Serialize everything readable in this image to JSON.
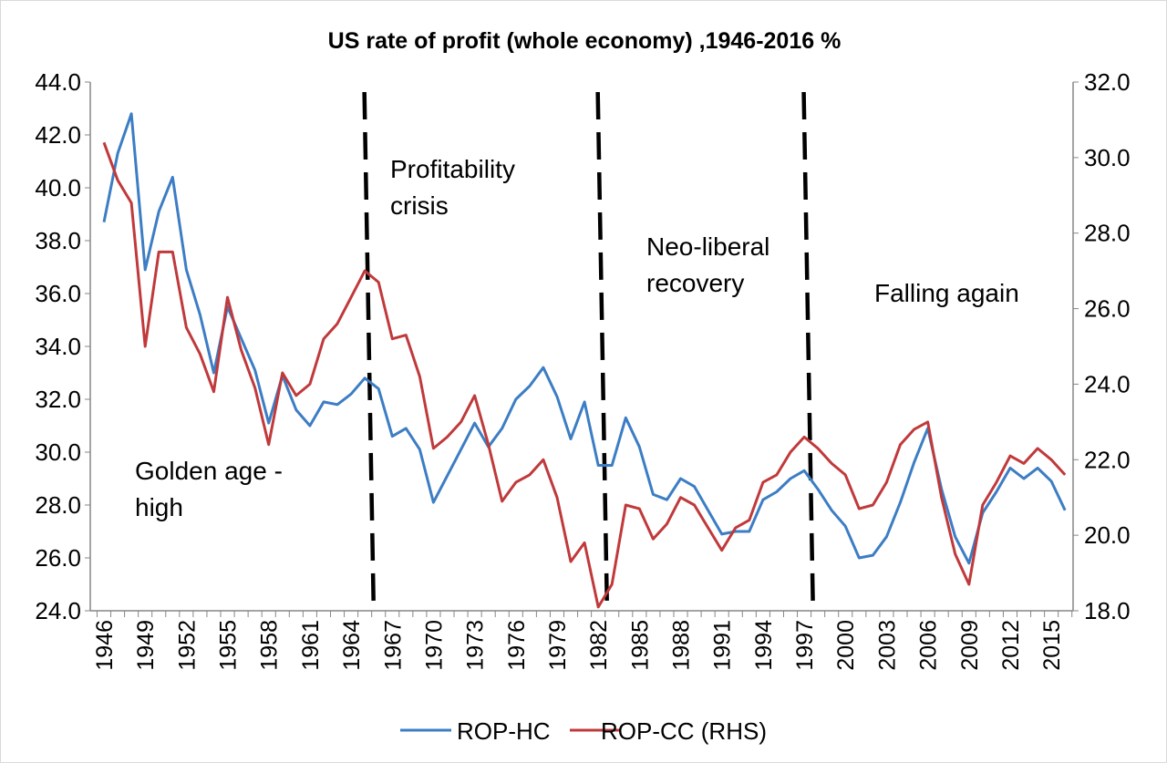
{
  "chart_data": {
    "type": "line",
    "title": "US rate of profit (whole economy) ,1946-2016 %",
    "x": [
      1946,
      1947,
      1948,
      1949,
      1950,
      1951,
      1952,
      1953,
      1954,
      1955,
      1956,
      1957,
      1958,
      1959,
      1960,
      1961,
      1962,
      1963,
      1964,
      1965,
      1966,
      1967,
      1968,
      1969,
      1970,
      1971,
      1972,
      1973,
      1974,
      1975,
      1976,
      1977,
      1978,
      1979,
      1980,
      1981,
      1982,
      1983,
      1984,
      1985,
      1986,
      1987,
      1988,
      1989,
      1990,
      1991,
      1992,
      1993,
      1994,
      1995,
      1996,
      1997,
      1998,
      1999,
      2000,
      2001,
      2002,
      2003,
      2004,
      2005,
      2006,
      2007,
      2008,
      2009,
      2010,
      2011,
      2012,
      2013,
      2014,
      2015,
      2016
    ],
    "x_tick_labels": [
      "1946",
      "1949",
      "1952",
      "1955",
      "1958",
      "1961",
      "1964",
      "1967",
      "1970",
      "1973",
      "1976",
      "1979",
      "1982",
      "1985",
      "1988",
      "1991",
      "1994",
      "1997",
      "2000",
      "2003",
      "2006",
      "2009",
      "2012",
      "2015"
    ],
    "series": [
      {
        "name": "ROP-HC",
        "axis": "left",
        "color": "#3c7dc4",
        "values": [
          38.7,
          41.3,
          42.8,
          36.9,
          39.1,
          40.4,
          36.9,
          35.2,
          33.0,
          35.5,
          34.3,
          33.1,
          31.1,
          32.9,
          31.6,
          31.0,
          31.9,
          31.8,
          32.2,
          32.8,
          32.4,
          30.6,
          30.9,
          30.1,
          28.1,
          29.1,
          30.1,
          31.1,
          30.2,
          30.9,
          32.0,
          32.5,
          33.2,
          32.1,
          30.5,
          31.9,
          29.5,
          29.5,
          31.3,
          30.2,
          28.4,
          28.2,
          29.0,
          28.7,
          27.8,
          26.9,
          27.0,
          27.0,
          28.2,
          28.5,
          29.0,
          29.3,
          28.6,
          27.8,
          27.2,
          26.0,
          26.1,
          26.8,
          28.1,
          29.6,
          30.9,
          28.6,
          26.8,
          25.8,
          27.7,
          28.5,
          29.4,
          29.0,
          29.4,
          28.9,
          27.8
        ]
      },
      {
        "name": "ROP-CC (RHS)",
        "axis": "right",
        "color": "#c0393b",
        "values": [
          30.4,
          29.4,
          28.8,
          25.0,
          27.5,
          27.5,
          25.5,
          24.8,
          23.8,
          26.3,
          24.9,
          23.9,
          22.4,
          24.3,
          23.7,
          24.0,
          25.2,
          25.6,
          26.3,
          27.0,
          26.7,
          25.2,
          25.3,
          24.2,
          22.3,
          22.6,
          23.0,
          23.7,
          22.4,
          20.9,
          21.4,
          21.6,
          22.0,
          21.0,
          19.3,
          19.8,
          18.1,
          18.7,
          20.8,
          20.7,
          19.9,
          20.3,
          21.0,
          20.8,
          20.2,
          19.6,
          20.2,
          20.4,
          21.4,
          21.6,
          22.2,
          22.6,
          22.3,
          21.9,
          21.6,
          20.7,
          20.8,
          21.4,
          22.4,
          22.8,
          23.0,
          21.0,
          19.5,
          18.7,
          20.8,
          21.4,
          22.1,
          21.9,
          22.3,
          22.0,
          21.6
        ]
      }
    ],
    "y_left": {
      "lim": [
        24.0,
        44.0
      ],
      "ticks": [
        "24.0",
        "26.0",
        "28.0",
        "30.0",
        "32.0",
        "34.0",
        "36.0",
        "38.0",
        "40.0",
        "42.0",
        "44.0"
      ]
    },
    "y_right": {
      "lim": [
        18.0,
        32.0
      ],
      "ticks": [
        "18.0",
        "20.0",
        "22.0",
        "24.0",
        "26.0",
        "28.0",
        "30.0",
        "32.0"
      ]
    },
    "divider_years": [
      1965.3,
      1982.3,
      1997.3
    ],
    "annotations": [
      {
        "lines": [
          "Golden age -",
          "high"
        ]
      },
      {
        "lines": [
          "Profitability",
          "crisis"
        ]
      },
      {
        "lines": [
          "Neo-liberal",
          "recovery"
        ]
      },
      {
        "lines": [
          "Falling again"
        ]
      }
    ],
    "grid": false,
    "legend": "bottom"
  }
}
